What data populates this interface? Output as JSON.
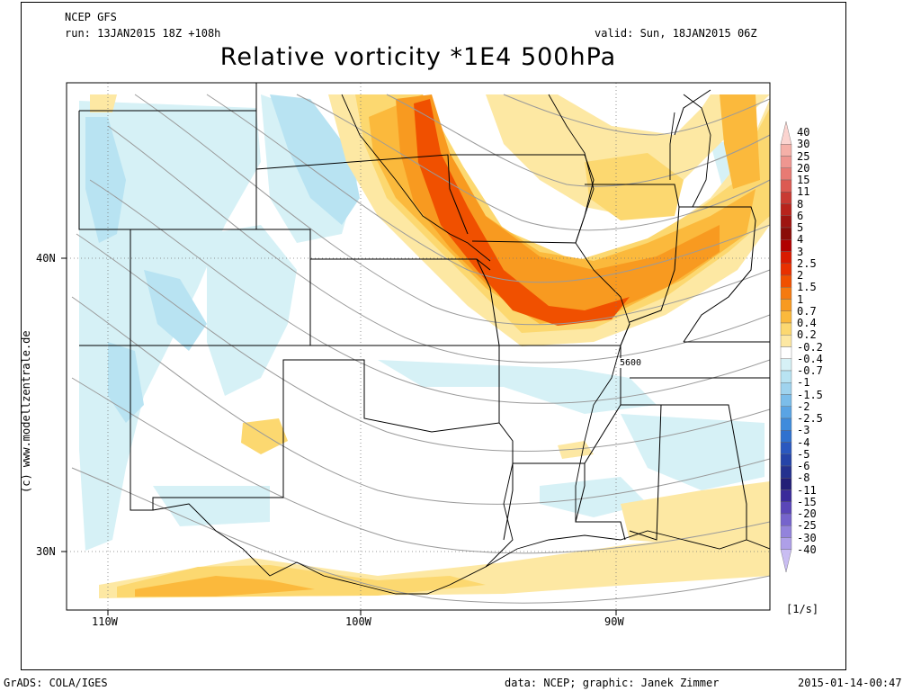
{
  "header": {
    "model": "NCEP GFS",
    "run": "run: 13JAN2015 18Z +108h",
    "valid": "valid: Sun, 18JAN2015 06Z",
    "title": "Relative vorticity *1E4 500hPa"
  },
  "map": {
    "lon_labels": [
      "110W",
      "100W",
      "90W"
    ],
    "lat_labels": [
      "40N",
      "30N"
    ],
    "contour_label": "5600",
    "credit": "(c) www.modellzentrale.de"
  },
  "legend": {
    "labels": [
      "40",
      "30",
      "25",
      "20",
      "15",
      "11",
      "8",
      "6",
      "5",
      "4",
      "3",
      "2.5",
      "2",
      "1.5",
      "1",
      "0.7",
      "0.4",
      "0.2",
      "-0.2",
      "-0.4",
      "-0.7",
      "-1",
      "-1.5",
      "-2",
      "-2.5",
      "-3",
      "-4",
      "-5",
      "-6",
      "-8",
      "-11",
      "-15",
      "-20",
      "-25",
      "-30",
      "-40"
    ],
    "colors": [
      "#fbd4d0",
      "#f5b0a8",
      "#ef9690",
      "#e87a73",
      "#dc5a52",
      "#c83a33",
      "#b8231c",
      "#9f1410",
      "#8a0c08",
      "#b00000",
      "#d81a00",
      "#e83000",
      "#f05000",
      "#f57a10",
      "#f89a20",
      "#fbb93c",
      "#fcd870",
      "#fde8a3",
      "#ffffff",
      "#d6f1f6",
      "#b8e3f2",
      "#9fd3ee",
      "#7bbdea",
      "#5aa4e4",
      "#3e8bdc",
      "#2f71cf",
      "#2a58bf",
      "#2544a8",
      "#24318f",
      "#231f77",
      "#3a2a9a",
      "#5a46b8",
      "#7664cc",
      "#9383dc",
      "#ae9fe8",
      "#c9bdf2"
    ],
    "unit": "[1/s]"
  },
  "footer": {
    "left": "GrADS: COLA/IGES",
    "center": "data: NCEP; graphic: Janek Zimmer",
    "right": "2015-01-14-00:47"
  }
}
